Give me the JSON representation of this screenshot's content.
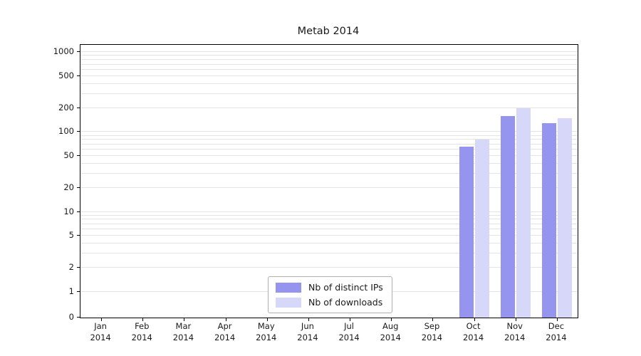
{
  "chart_data": {
    "type": "bar",
    "title": "Metab 2014",
    "categories": [
      "Jan",
      "Feb",
      "Mar",
      "Apr",
      "May",
      "Jun",
      "Jul",
      "Aug",
      "Sep",
      "Oct",
      "Nov",
      "Dec"
    ],
    "year": "2014",
    "series": [
      {
        "name": "Nb of distinct IPs",
        "color": "#9595ef",
        "values": [
          0,
          0,
          0,
          0,
          0,
          0,
          0,
          0,
          0,
          65,
          160,
          130
        ]
      },
      {
        "name": "Nb of downloads",
        "color": "#d7d7fa",
        "values": [
          0,
          0,
          0,
          0,
          0,
          0,
          0,
          0,
          0,
          80,
          200,
          150
        ]
      }
    ],
    "y_ticks": [
      0,
      1,
      2,
      5,
      10,
      20,
      50,
      100,
      200,
      500,
      1000
    ],
    "yscale": "symlog",
    "ylim": [
      0,
      1200
    ],
    "grid": "horizontal-log-minor",
    "legend_position": "bottom-center-inside",
    "gridline_color": "#e4e4e4",
    "frame_color": "#000000"
  }
}
